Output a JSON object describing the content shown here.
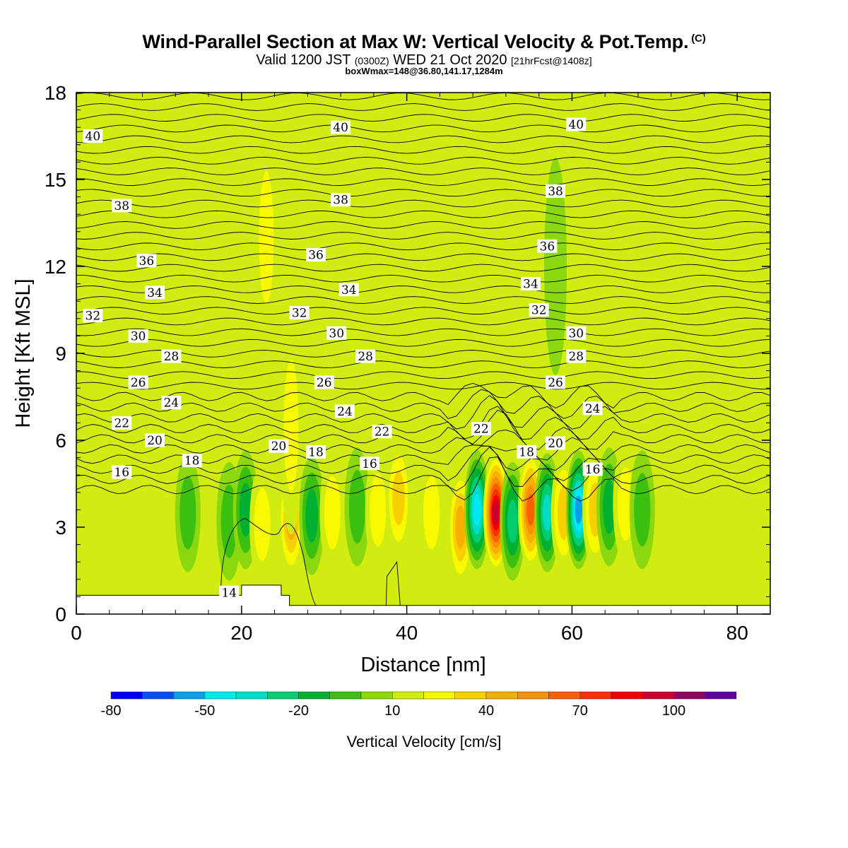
{
  "title": {
    "main": "Wind-Parallel Section at Max W: Vertical Velocity & Pot.Temp.",
    "copyright": "(C)",
    "valid_prefix": "Valid 1200 JST",
    "valid_utc": "(0300Z)",
    "valid_date": "WED 21 Oct 2020",
    "forecast": "[21hrFcst@1408z]",
    "box": "boxWmax=148@36.80,141.17,1284m"
  },
  "colorbar": {
    "title": "Vertical Velocity [cm/s]",
    "labels": [
      "-80",
      "-50",
      "-20",
      "10",
      "40",
      "70",
      "100"
    ],
    "colors": [
      "#0000ee",
      "#0050f0",
      "#00a0f0",
      "#00e8f0",
      "#00dcc8",
      "#00cc70",
      "#00b030",
      "#3cc010",
      "#8cd810",
      "#d0ec10",
      "#f8f800",
      "#f8d000",
      "#f8b000",
      "#f89000",
      "#f86000",
      "#f83000",
      "#f00000",
      "#c80030",
      "#900060",
      "#6000a0"
    ]
  },
  "chart_data": {
    "type": "heatmap",
    "xlabel": "Distance [nm]",
    "ylabel": "Height [Kft MSL]",
    "xlim": [
      0,
      84
    ],
    "ylim": [
      0,
      18
    ],
    "xticks": [
      "0",
      "20",
      "40",
      "60",
      "80"
    ],
    "yticks": [
      "0",
      "3",
      "6",
      "9",
      "12",
      "15",
      "18"
    ],
    "background_velocity": 0,
    "velocity_cells": [
      {
        "x": 13.5,
        "y": 3.5,
        "w": -20
      },
      {
        "x": 18.5,
        "y": 3.2,
        "w": -15
      },
      {
        "x": 20.5,
        "y": 3.6,
        "w": -30
      },
      {
        "x": 22.5,
        "y": 3.1,
        "w": 15
      },
      {
        "x": 26.0,
        "y": 3.3,
        "w": 35
      },
      {
        "x": 28.5,
        "y": 3.4,
        "w": -30
      },
      {
        "x": 31.0,
        "y": 3.5,
        "w": 15
      },
      {
        "x": 34.0,
        "y": 3.7,
        "w": -20
      },
      {
        "x": 36.5,
        "y": 3.6,
        "w": 20
      },
      {
        "x": 39.0,
        "y": 4.0,
        "w": 30
      },
      {
        "x": 43.0,
        "y": 3.5,
        "w": 15
      },
      {
        "x": 46.5,
        "y": 3.0,
        "w": 40
      },
      {
        "x": 48.5,
        "y": 3.6,
        "w": -60
      },
      {
        "x": 50.8,
        "y": 3.5,
        "w": 90
      },
      {
        "x": 52.8,
        "y": 3.2,
        "w": -35
      },
      {
        "x": 55.0,
        "y": 3.6,
        "w": 60
      },
      {
        "x": 57.0,
        "y": 3.5,
        "w": -45
      },
      {
        "x": 59.0,
        "y": 3.5,
        "w": 30
      },
      {
        "x": 60.8,
        "y": 3.6,
        "w": -70
      },
      {
        "x": 62.8,
        "y": 3.6,
        "w": 25
      },
      {
        "x": 64.5,
        "y": 3.7,
        "w": -30
      },
      {
        "x": 66.5,
        "y": 3.8,
        "w": 20
      },
      {
        "x": 68.5,
        "y": 3.6,
        "w": -15
      },
      {
        "x": 23.0,
        "y": 13.0,
        "w": 20
      },
      {
        "x": 26.0,
        "y": 6.5,
        "w": 15
      },
      {
        "x": 6.0,
        "y": 10.5,
        "w": 10
      },
      {
        "x": 30.0,
        "y": 14.0,
        "w": 12
      },
      {
        "x": 58.0,
        "y": 12.0,
        "w": -12
      }
    ],
    "theta_contour_labels": [
      "14",
      "16",
      "18",
      "20",
      "22",
      "24",
      "26",
      "28",
      "30",
      "32",
      "34",
      "36",
      "38",
      "40"
    ],
    "theta_label_marks": [
      {
        "x": 18.5,
        "y": 0.75,
        "t": "14"
      },
      {
        "x": 5.5,
        "y": 4.9,
        "t": "16"
      },
      {
        "x": 35.5,
        "y": 5.2,
        "t": "16"
      },
      {
        "x": 62.5,
        "y": 5.0,
        "t": "16"
      },
      {
        "x": 14.0,
        "y": 5.3,
        "t": "18"
      },
      {
        "x": 29.0,
        "y": 5.6,
        "t": "18"
      },
      {
        "x": 54.5,
        "y": 5.6,
        "t": "18"
      },
      {
        "x": 9.5,
        "y": 6.0,
        "t": "20"
      },
      {
        "x": 24.5,
        "y": 5.8,
        "t": "20"
      },
      {
        "x": 58.0,
        "y": 5.9,
        "t": "20"
      },
      {
        "x": 5.5,
        "y": 6.6,
        "t": "22"
      },
      {
        "x": 37.0,
        "y": 6.3,
        "t": "22"
      },
      {
        "x": 49.0,
        "y": 6.4,
        "t": "22"
      },
      {
        "x": 11.5,
        "y": 7.3,
        "t": "24"
      },
      {
        "x": 32.5,
        "y": 7.0,
        "t": "24"
      },
      {
        "x": 62.5,
        "y": 7.1,
        "t": "24"
      },
      {
        "x": 7.5,
        "y": 8.0,
        "t": "26"
      },
      {
        "x": 30.0,
        "y": 8.0,
        "t": "26"
      },
      {
        "x": 58.0,
        "y": 8.0,
        "t": "26"
      },
      {
        "x": 11.5,
        "y": 8.9,
        "t": "28"
      },
      {
        "x": 35.0,
        "y": 8.9,
        "t": "28"
      },
      {
        "x": 60.5,
        "y": 8.9,
        "t": "28"
      },
      {
        "x": 7.5,
        "y": 9.6,
        "t": "30"
      },
      {
        "x": 31.5,
        "y": 9.7,
        "t": "30"
      },
      {
        "x": 60.5,
        "y": 9.7,
        "t": "30"
      },
      {
        "x": 2.0,
        "y": 10.3,
        "t": "32"
      },
      {
        "x": 27.0,
        "y": 10.4,
        "t": "32"
      },
      {
        "x": 56.0,
        "y": 10.5,
        "t": "32"
      },
      {
        "x": 9.5,
        "y": 11.1,
        "t": "34"
      },
      {
        "x": 33.0,
        "y": 11.2,
        "t": "34"
      },
      {
        "x": 55.0,
        "y": 11.4,
        "t": "34"
      },
      {
        "x": 8.5,
        "y": 12.2,
        "t": "36"
      },
      {
        "x": 29.0,
        "y": 12.4,
        "t": "36"
      },
      {
        "x": 57.0,
        "y": 12.7,
        "t": "36"
      },
      {
        "x": 5.5,
        "y": 14.1,
        "t": "38"
      },
      {
        "x": 32.0,
        "y": 14.3,
        "t": "38"
      },
      {
        "x": 58.0,
        "y": 14.6,
        "t": "38"
      },
      {
        "x": 2.0,
        "y": 16.5,
        "t": "40"
      },
      {
        "x": 32.0,
        "y": 16.8,
        "t": "40"
      },
      {
        "x": 60.5,
        "y": 16.9,
        "t": "40"
      }
    ],
    "terrain": [
      {
        "x": 0,
        "h": 0.65
      },
      {
        "x": 20,
        "h": 0.65
      },
      {
        "x": 20,
        "h": 1.0
      },
      {
        "x": 24.8,
        "h": 1.0
      },
      {
        "x": 24.8,
        "h": 0.65
      },
      {
        "x": 25.8,
        "h": 0.65
      },
      {
        "x": 25.8,
        "h": 0.3
      },
      {
        "x": 84,
        "h": 0.3
      }
    ]
  }
}
